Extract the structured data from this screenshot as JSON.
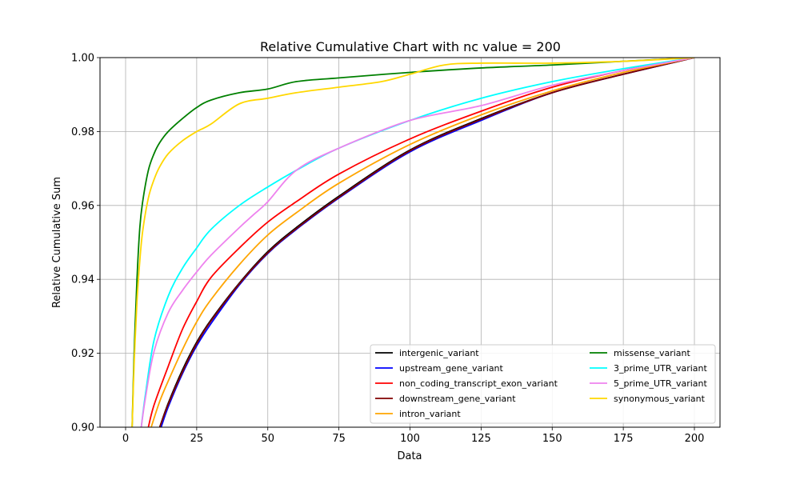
{
  "chart_data": {
    "type": "line",
    "title": "Relative Cumulative Chart with nc value = 200",
    "xlabel": "Data",
    "ylabel": "Relative Cumulative Sum",
    "xlim": [
      -9,
      209
    ],
    "ylim": [
      0.9,
      1.0
    ],
    "xticks": [
      0,
      25,
      50,
      75,
      100,
      125,
      150,
      175,
      200
    ],
    "yticks": [
      0.9,
      0.92,
      0.94,
      0.96,
      0.98,
      1.0
    ],
    "xtick_labels": [
      "0",
      "25",
      "50",
      "75",
      "100",
      "125",
      "150",
      "175",
      "200"
    ],
    "ytick_labels": [
      "0.90",
      "0.92",
      "0.94",
      "0.96",
      "0.98",
      "1.00"
    ],
    "grid": true,
    "legend_position": "lower-right",
    "legend_columns": 2,
    "series": [
      {
        "name": "intergenic_variant",
        "color": "#000000",
        "x": [
          12,
          15,
          20,
          25,
          30,
          40,
          50,
          60,
          75,
          100,
          125,
          150,
          175,
          200
        ],
        "y": [
          0.9,
          0.9065,
          0.9155,
          0.923,
          0.929,
          0.939,
          0.9475,
          0.954,
          0.9625,
          0.975,
          0.9835,
          0.9905,
          0.9955,
          1.0
        ]
      },
      {
        "name": "upstream_gene_variant",
        "color": "#0000ff",
        "x": [
          12.5,
          15,
          20,
          25,
          30,
          40,
          50,
          60,
          75,
          100,
          125,
          150,
          175,
          200
        ],
        "y": [
          0.9,
          0.9055,
          0.9145,
          0.922,
          0.928,
          0.9385,
          0.947,
          0.9535,
          0.962,
          0.9745,
          0.983,
          0.9905,
          0.9955,
          1.0
        ]
      },
      {
        "name": "non_coding_transcript_exon_variant",
        "color": "#ff0000",
        "x": [
          8,
          10,
          15,
          20,
          25,
          30,
          40,
          50,
          60,
          75,
          100,
          125,
          150,
          175,
          200
        ],
        "y": [
          0.9,
          0.906,
          0.9165,
          0.9265,
          0.934,
          0.9405,
          0.9485,
          0.9555,
          0.961,
          0.9685,
          0.978,
          0.9855,
          0.992,
          0.9965,
          1.0
        ]
      },
      {
        "name": "downstream_gene_variant",
        "color": "#800000",
        "x": [
          12,
          15,
          20,
          25,
          30,
          40,
          50,
          60,
          75,
          100,
          125,
          150,
          175,
          200
        ],
        "y": [
          0.9,
          0.9062,
          0.915,
          0.9226,
          0.9287,
          0.9388,
          0.9472,
          0.9537,
          0.9622,
          0.9748,
          0.9833,
          0.9905,
          0.9955,
          1.0
        ]
      },
      {
        "name": "intron_variant",
        "color": "#ffa500",
        "x": [
          9,
          12,
          15,
          20,
          25,
          30,
          40,
          50,
          60,
          75,
          100,
          125,
          150,
          175,
          200
        ],
        "y": [
          0.9,
          0.907,
          0.9125,
          0.921,
          0.9285,
          0.9345,
          0.944,
          0.952,
          0.958,
          0.966,
          0.9765,
          0.9845,
          0.991,
          0.996,
          1.0
        ]
      },
      {
        "name": "missense_variant",
        "color": "#008000",
        "x": [
          2.3,
          3,
          4,
          5,
          6,
          8,
          10,
          12,
          15,
          20,
          25,
          30,
          40,
          50,
          60,
          75,
          100,
          125,
          150,
          175,
          200
        ],
        "y": [
          0.9,
          0.92,
          0.94,
          0.954,
          0.961,
          0.9695,
          0.974,
          0.977,
          0.98,
          0.9835,
          0.9865,
          0.9885,
          0.9905,
          0.9915,
          0.9935,
          0.9945,
          0.996,
          0.9972,
          0.998,
          0.999,
          1.0
        ]
      },
      {
        "name": "3_prime_UTR_variant",
        "color": "#00ffff",
        "x": [
          5.5,
          7,
          10,
          15,
          20,
          25,
          30,
          40,
          50,
          60,
          75,
          100,
          125,
          150,
          175,
          200
        ],
        "y": [
          0.9,
          0.909,
          0.9235,
          0.9355,
          0.943,
          0.9485,
          0.9535,
          0.96,
          0.965,
          0.9695,
          0.9755,
          0.983,
          0.989,
          0.9935,
          0.997,
          1.0
        ]
      },
      {
        "name": "5_prime_UTR_variant",
        "color": "#ee82ee",
        "x": [
          5.5,
          7,
          10,
          15,
          20,
          25,
          30,
          40,
          45,
          50,
          60,
          75,
          100,
          125,
          150,
          175,
          200
        ],
        "y": [
          0.9,
          0.908,
          0.9205,
          0.931,
          0.937,
          0.942,
          0.9465,
          0.954,
          0.9575,
          0.961,
          0.9695,
          0.9755,
          0.983,
          0.987,
          0.9925,
          0.9965,
          1.0
        ]
      },
      {
        "name": "synonymous_variant",
        "color": "#ffd700",
        "x": [
          2.3,
          3,
          4,
          5,
          6,
          8,
          10,
          12,
          15,
          20,
          25,
          30,
          40,
          50,
          60,
          75,
          90,
          100,
          112,
          125,
          150,
          175,
          200
        ],
        "y": [
          0.9,
          0.917,
          0.934,
          0.945,
          0.953,
          0.962,
          0.967,
          0.9705,
          0.974,
          0.9775,
          0.98,
          0.982,
          0.9875,
          0.989,
          0.9905,
          0.992,
          0.9935,
          0.9955,
          0.998,
          0.9985,
          0.9985,
          0.999,
          1.0
        ]
      }
    ]
  }
}
